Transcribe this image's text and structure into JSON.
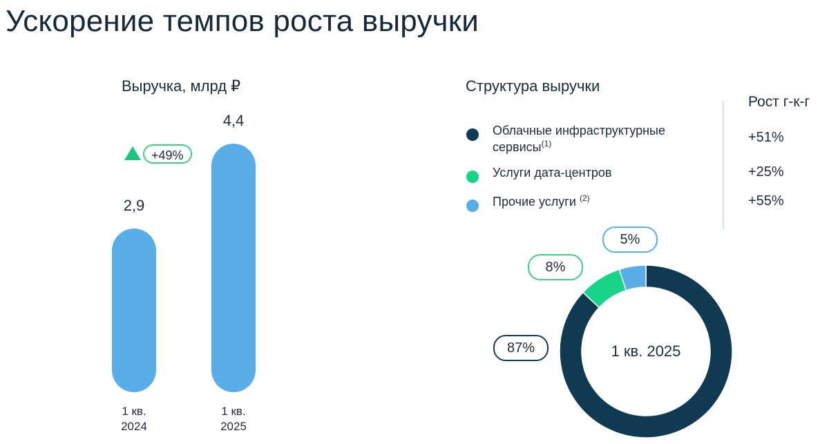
{
  "title": "Ускорение темпов роста выручки",
  "colors": {
    "bar": "#5aaee8",
    "cloud": "#103a52",
    "datacenter": "#19d58a",
    "other": "#5aaee8",
    "growth": "#19c47f"
  },
  "chart_data": [
    {
      "type": "bar",
      "title": "Выручка, млрд ₽",
      "categories": [
        "1 кв. 2024",
        "1 кв. 2025"
      ],
      "category_lines": [
        [
          "1 кв.",
          "2024"
        ],
        [
          "1 кв.",
          "2025"
        ]
      ],
      "values": [
        2.9,
        4.4
      ],
      "value_labels": [
        "2,9",
        "4,4"
      ],
      "ylim": [
        0,
        4.4
      ],
      "growth_label": "+49%",
      "growth_icon": "triangle-up-icon"
    },
    {
      "type": "pie",
      "title": "Структура выручки",
      "center_label": "1 кв. 2025",
      "growth_header": "Рост г-к-г",
      "slices": [
        {
          "name": "Облачные инфраструктурные сервисы",
          "name_lines": [
            "Облачные инфраструктурные",
            "сервисы"
          ],
          "note": "(1)",
          "value": 87,
          "label": "87%",
          "growth": "+51%"
        },
        {
          "name": "Услуги дата-центров",
          "name_lines": [
            "Услуги дата-центров"
          ],
          "note": "",
          "value": 8,
          "label": "8%",
          "growth": "+25%"
        },
        {
          "name": "Прочие услуги",
          "name_lines": [
            "Прочие услуги"
          ],
          "note": "(2)",
          "value": 5,
          "label": "5%",
          "growth": "+55%"
        }
      ]
    }
  ]
}
